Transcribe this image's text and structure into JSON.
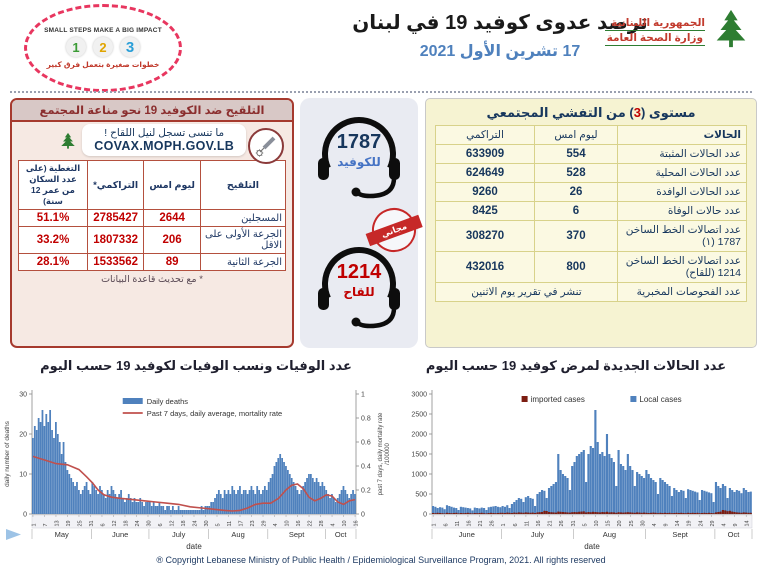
{
  "colors": {
    "bar_blue": "#4f81bd",
    "line_red": "#c0504d",
    "imported_red": "#7c1d12",
    "navy": "#17375d",
    "red": "#c00000",
    "accent_blue": "#4472c4",
    "date_blue": "#4f81bd"
  },
  "header": {
    "badge": {
      "top_text": "SMALL STEPS MAKE A BIG IMPACT",
      "steps": [
        "1",
        "2",
        "3"
      ],
      "bottom_text": "خطوات صغيرة بتعمل فرق كبير"
    },
    "title": "ترصد عدوى كوفيد 19 في لبنان",
    "date": "17 تشرين الأول 2021",
    "moph": {
      "line1": "الجمهورية اللبنانية",
      "line2": "وزارة الصحة العامة"
    }
  },
  "vaccination_panel": {
    "title": "التلقيح ضد الكوفيد 19  نحو مناعة المجتمع",
    "reminder": "ما تنسى تسجل لنيل اللقاح !",
    "covax_url": "COVAX.MOPH.GOV.LB",
    "table": {
      "headers": [
        "التلقيح",
        "ليوم امس",
        "التراكمي*",
        "التغطية (على عدد السكان من عمر 12 سنة)"
      ],
      "rows": [
        {
          "label": "المسجلين",
          "yesterday": "2644",
          "cumulative": "2785427",
          "coverage": "51.1%"
        },
        {
          "label": "الجرعة الأولى على الاقل",
          "yesterday": "206",
          "cumulative": "1807332",
          "coverage": "33.2%"
        },
        {
          "label": "الجرعة الثانية",
          "yesterday": "89",
          "cumulative": "1533562",
          "coverage": "28.1%"
        }
      ],
      "footnote": "* مع تحديث قاعدة البيانات"
    }
  },
  "hotlines": {
    "covid": {
      "number": "1787",
      "label": "للكوفيد"
    },
    "vaccine": {
      "number": "1214",
      "label": "للقاح"
    },
    "stamp": "مجاني"
  },
  "outbreak_panel": {
    "title_pre": "مستوى (",
    "level": "3",
    "title_post": ") من التفشي المجتمعي",
    "table": {
      "headers": [
        "الحالات",
        "ليوم امس",
        "التراكمي"
      ],
      "rows": [
        {
          "label": "عدد الحالات المثبتة",
          "yesterday": "554",
          "cumulative": "633909"
        },
        {
          "label": "عدد الحالات المحلية",
          "yesterday": "528",
          "cumulative": "624649"
        },
        {
          "label": "عدد الحالات الوافدة",
          "yesterday": "26",
          "cumulative": "9260"
        },
        {
          "label": "عدد حالات الوفاة",
          "yesterday": "6",
          "cumulative": "8425"
        },
        {
          "label": "عدد اتصالات الخط الساخن 1787 (١)",
          "yesterday": "370",
          "cumulative": "308270"
        },
        {
          "label": "عدد اتصالات الخط الساخن 1214 (للقاح)",
          "yesterday": "800",
          "cumulative": "432016"
        },
        {
          "label": "عدد الفحوصات المخبرية",
          "span": "تنشر في تقرير يوم الاثنين"
        }
      ]
    }
  },
  "chart_data": [
    {
      "type": "bar",
      "title": "عدد الوفيات ونسب الوفيات لكوفيد 19 حسب اليوم",
      "xlabel": "date",
      "ylabel_left": "daily number of deaths",
      "ylabel_right": "past 7 days, daily mortality rate",
      "ylabel_right2": "/100000",
      "ylim": [
        0,
        30
      ],
      "yticks": [
        0,
        10,
        20,
        30
      ],
      "y2lim": [
        0,
        1
      ],
      "y2ticks": [
        0,
        0.2,
        0.4,
        0.6,
        0.8,
        1
      ],
      "legend": [
        {
          "label": "Daily deaths",
          "color": "#4f81bd",
          "type": "bar"
        },
        {
          "label": "Past 7 days, daily average, mortality rate",
          "color": "#c0504d",
          "type": "line"
        }
      ],
      "months": [
        {
          "label": "May",
          "days": 31
        },
        {
          "label": "June",
          "days": 30
        },
        {
          "label": "July",
          "days": 31
        },
        {
          "label": "Aug",
          "days": 31
        },
        {
          "label": "Sept",
          "days": 30
        },
        {
          "label": "Oct",
          "days": 16
        }
      ],
      "tick_every": 6,
      "x_tick_labels": [
        1,
        7,
        13,
        19,
        25,
        31,
        6,
        12,
        18,
        24,
        30,
        6,
        12,
        18,
        24,
        30,
        5,
        11,
        17,
        23,
        29,
        4,
        10,
        16,
        22,
        28,
        4,
        10,
        16
      ],
      "series": [
        {
          "name": "Daily deaths",
          "color": "#4f81bd",
          "values": [
            19,
            22,
            21,
            24,
            23,
            26,
            22,
            25,
            23,
            26,
            21,
            19,
            23,
            20,
            18,
            15,
            18,
            13,
            11,
            10,
            9,
            8,
            7,
            8,
            6,
            5,
            6,
            7,
            8,
            6,
            5,
            8,
            7,
            6,
            5,
            7,
            6,
            5,
            4,
            6,
            5,
            7,
            6,
            5,
            4,
            5,
            6,
            4,
            3,
            4,
            5,
            4,
            3,
            4,
            3,
            3,
            4,
            3,
            2,
            3,
            3,
            3,
            2,
            3,
            2,
            2,
            3,
            2,
            2,
            1,
            2,
            2,
            1,
            2,
            1,
            1,
            2,
            1,
            1,
            1,
            1,
            1,
            1,
            1,
            1,
            1,
            1,
            1,
            2,
            1,
            2,
            2,
            2,
            3,
            3,
            4,
            5,
            6,
            5,
            4,
            6,
            5,
            6,
            5,
            7,
            6,
            5,
            6,
            7,
            5,
            6,
            6,
            5,
            6,
            7,
            6,
            5,
            7,
            6,
            5,
            6,
            7,
            6,
            8,
            9,
            10,
            12,
            13,
            14,
            15,
            14,
            13,
            12,
            11,
            10,
            9,
            8,
            7,
            6,
            5,
            6,
            7,
            8,
            9,
            10,
            10,
            9,
            8,
            9,
            8,
            7,
            8,
            7,
            6,
            5,
            4,
            5,
            4,
            3,
            4,
            5,
            6,
            7,
            6,
            5,
            4,
            5,
            6,
            5
          ]
        }
      ],
      "line": {
        "color": "#c0504d",
        "points": [
          [
            0,
            0.48
          ],
          [
            6,
            0.45
          ],
          [
            12,
            0.42
          ],
          [
            18,
            0.41
          ],
          [
            24,
            0.37
          ],
          [
            28,
            0.31
          ],
          [
            31,
            0.26
          ],
          [
            34,
            0.2
          ],
          [
            37,
            0.16
          ],
          [
            41,
            0.14
          ],
          [
            46,
            0.13
          ],
          [
            52,
            0.12
          ],
          [
            58,
            0.11
          ],
          [
            64,
            0.1
          ],
          [
            70,
            0.09
          ],
          [
            76,
            0.08
          ],
          [
            82,
            0.06
          ],
          [
            88,
            0.05
          ],
          [
            94,
            0.04
          ],
          [
            100,
            0.03
          ],
          [
            104,
            0.025
          ],
          [
            108,
            0.03
          ],
          [
            112,
            0.05
          ],
          [
            116,
            0.08
          ],
          [
            120,
            0.09
          ],
          [
            124,
            0.09
          ],
          [
            128,
            0.13
          ],
          [
            132,
            0.2
          ],
          [
            135,
            0.24
          ],
          [
            138,
            0.25
          ],
          [
            141,
            0.21
          ],
          [
            144,
            0.14
          ],
          [
            147,
            0.11
          ],
          [
            150,
            0.13
          ],
          [
            153,
            0.16
          ],
          [
            156,
            0.15
          ],
          [
            159,
            0.1
          ],
          [
            162,
            0.08
          ],
          [
            165,
            0.11
          ],
          [
            168,
            0.12
          ]
        ]
      }
    },
    {
      "type": "bar",
      "title": "عدد الحالات الجديدة لمرض كوفيد 19 حسب اليوم",
      "xlabel": "date",
      "ylim": [
        0,
        3000
      ],
      "yticks": [
        0,
        500,
        1000,
        1500,
        2000,
        2500,
        3000
      ],
      "legend": [
        {
          "label": "imported cases",
          "color": "#7c1d12",
          "type": "bar"
        },
        {
          "label": "Local cases",
          "color": "#4f81bd",
          "type": "bar"
        }
      ],
      "months": [
        {
          "label": "June",
          "days": 30
        },
        {
          "label": "July",
          "days": 31
        },
        {
          "label": "Aug",
          "days": 31
        },
        {
          "label": "Sept",
          "days": 30
        },
        {
          "label": "Oct",
          "days": 16
        }
      ],
      "tick_every": 5,
      "x_tick_labels": [
        1,
        6,
        11,
        16,
        21,
        26,
        1,
        6,
        11,
        16,
        21,
        26,
        31,
        5,
        10,
        15,
        20,
        25,
        30,
        4,
        9,
        14,
        19,
        24,
        29,
        4,
        9,
        14
      ],
      "series": [
        {
          "name": "Local cases",
          "color": "#4f81bd",
          "values": [
            200,
            180,
            150,
            170,
            160,
            120,
            220,
            200,
            180,
            160,
            150,
            100,
            180,
            170,
            160,
            150,
            140,
            90,
            160,
            150,
            140,
            160,
            150,
            100,
            170,
            180,
            190,
            200,
            180,
            170,
            200,
            180,
            220,
            150,
            250,
            300,
            350,
            400,
            380,
            300,
            420,
            450,
            400,
            380,
            200,
            500,
            550,
            600,
            580,
            400,
            650,
            700,
            750,
            800,
            1500,
            1100,
            1000,
            950,
            900,
            600,
            1200,
            1300,
            1450,
            1500,
            1550,
            1600,
            800,
            1500,
            1700,
            1650,
            2600,
            1800,
            1500,
            1550,
            1450,
            2000,
            1500,
            1400,
            1300,
            700,
            1600,
            1250,
            1200,
            1100,
            1500,
            1200,
            1100,
            700,
            1050,
            1000,
            950,
            900,
            1100,
            1000,
            900,
            850,
            800,
            500,
            900,
            850,
            800,
            750,
            700,
            450,
            650,
            600,
            550,
            600,
            580,
            400,
            620,
            600,
            580,
            560,
            540,
            350,
            600,
            580,
            560,
            540,
            520,
            300,
            800,
            700,
            650,
            750,
            700,
            400,
            650,
            600,
            550,
            600,
            580,
            520,
            650,
            600,
            550,
            560
          ]
        },
        {
          "name": "imported cases",
          "color": "#7c1d12",
          "values": [
            25,
            20,
            30,
            25,
            20,
            15,
            30,
            25,
            20,
            25,
            30,
            15,
            25,
            20,
            25,
            30,
            20,
            15,
            25,
            20,
            25,
            30,
            20,
            15,
            25,
            30,
            25,
            20,
            25,
            30,
            30,
            25,
            35,
            30,
            25,
            35,
            30,
            40,
            35,
            30,
            40,
            35,
            30,
            35,
            25,
            40,
            45,
            50,
            80,
            75,
            50,
            45,
            40,
            35,
            60,
            55,
            50,
            45,
            40,
            35,
            45,
            50,
            45,
            55,
            60,
            65,
            40,
            50,
            45,
            55,
            50,
            45,
            40,
            50,
            45,
            55,
            40,
            45,
            40,
            30,
            45,
            40,
            35,
            40,
            45,
            40,
            35,
            30,
            40,
            35,
            30,
            35,
            30,
            25,
            30,
            35,
            30,
            20,
            30,
            25,
            30,
            25,
            30,
            20,
            25,
            30,
            25,
            30,
            25,
            20,
            30,
            25,
            30,
            25,
            30,
            20,
            25,
            30,
            25,
            30,
            25,
            20,
            40,
            50,
            60,
            100,
            90,
            70,
            80,
            60,
            50,
            40,
            35,
            30,
            40,
            35,
            30,
            30
          ]
        }
      ]
    }
  ],
  "footer": "® Copyright Lebanese Ministry of Public Health / Epidemiological Surveillance Program, 2021. All rights reserved"
}
